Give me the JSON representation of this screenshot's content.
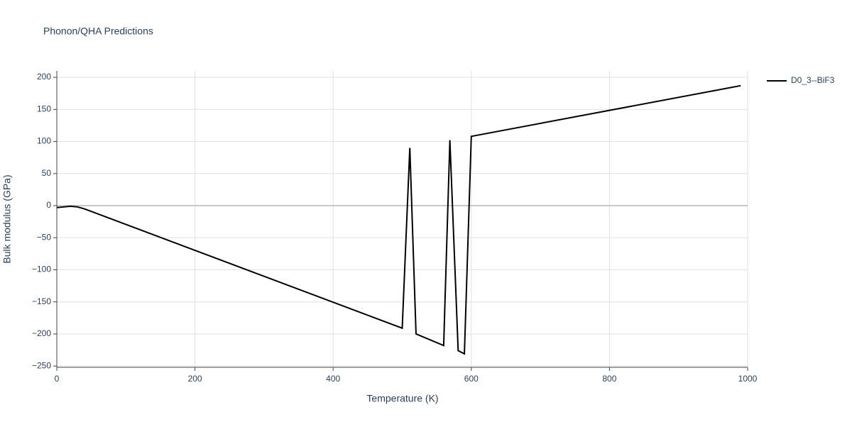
{
  "chart_data": {
    "type": "line",
    "title": "Phonon/QHA Predictions",
    "x_label": "Temperature (K)",
    "y_label": "Bulk modulus (GPa)",
    "xlim": [
      0,
      1000
    ],
    "xticks": [
      0,
      200,
      400,
      600,
      800,
      1000
    ],
    "ylim": [
      -252,
      210
    ],
    "yticks": [
      {
        "value": -250,
        "label": "−250"
      },
      {
        "value": -200,
        "label": "−200"
      },
      {
        "value": -150,
        "label": "−150"
      },
      {
        "value": -100,
        "label": "−100"
      },
      {
        "value": -50,
        "label": "−50"
      },
      0,
      50,
      100,
      150,
      200
    ],
    "grid": true,
    "legend": "top-right",
    "series": [
      {
        "name": "D0_3--BiF3",
        "color": "#000000",
        "x": [
          0,
          10,
          20,
          30,
          40,
          500,
          511,
          520,
          560,
          569,
          581,
          590,
          600,
          990
        ],
        "values": [
          -3,
          -2,
          -1,
          -2,
          -5,
          -191,
          90,
          -200,
          -218,
          102,
          -226,
          -231,
          108,
          187
        ]
      }
    ]
  }
}
